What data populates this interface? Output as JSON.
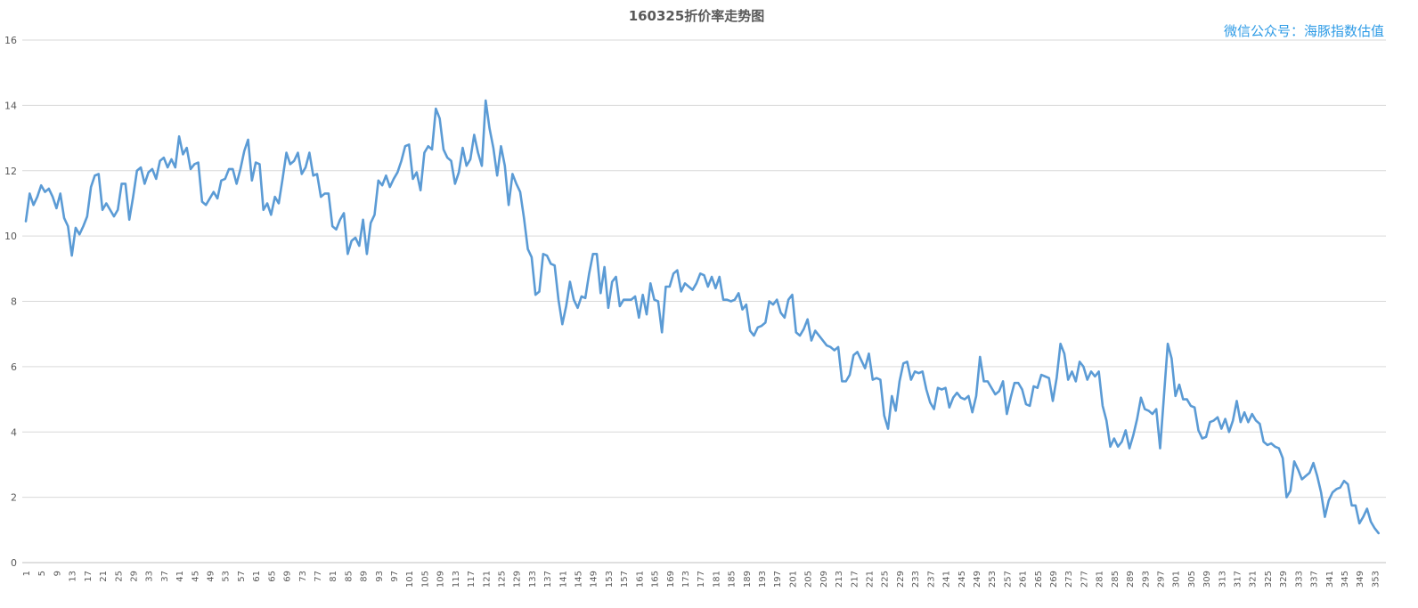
{
  "title": "160325折价率走势图",
  "watermark": "微信公众号：海豚指数估值",
  "colors": {
    "line": "#5B9BD5",
    "grid": "#D9D9D9",
    "axis_text": "#595959",
    "title": "#595959",
    "watermark": "#2E9BE6"
  },
  "chart_data": {
    "type": "line",
    "title": "160325折价率走势图",
    "xlabel": "",
    "ylabel": "",
    "ylim": [
      0,
      16
    ],
    "yticks": [
      0,
      2,
      4,
      6,
      8,
      10,
      12,
      14,
      16
    ],
    "xlim": [
      1,
      355
    ],
    "xticks": [
      1,
      5,
      9,
      13,
      17,
      21,
      25,
      29,
      33,
      37,
      41,
      45,
      49,
      53,
      57,
      61,
      65,
      69,
      73,
      77,
      81,
      85,
      89,
      93,
      97,
      101,
      105,
      109,
      113,
      117,
      121,
      125,
      129,
      133,
      137,
      141,
      145,
      149,
      153,
      157,
      161,
      165,
      169,
      173,
      177,
      181,
      185,
      189,
      193,
      197,
      201,
      205,
      209,
      213,
      217,
      221,
      225,
      229,
      233,
      237,
      241,
      245,
      249,
      253,
      257,
      261,
      265,
      269,
      273,
      277,
      281,
      285,
      289,
      293,
      297,
      301,
      305,
      309,
      313,
      317,
      321,
      325,
      329,
      333,
      337,
      341,
      345,
      349,
      353
    ],
    "grid": true,
    "legend": "none",
    "series": [
      {
        "values": [
          10.45,
          11.3,
          10.95,
          11.2,
          11.55,
          11.35,
          11.45,
          11.2,
          10.85,
          11.3,
          10.55,
          10.3,
          9.4,
          10.25,
          10.05,
          10.3,
          10.6,
          11.5,
          11.85,
          11.9,
          10.8,
          11.0,
          10.8,
          10.6,
          10.8,
          11.6,
          11.6,
          10.5,
          11.2,
          12.0,
          12.1,
          11.6,
          11.95,
          12.05,
          11.75,
          12.3,
          12.4,
          12.1,
          12.35,
          12.1,
          13.05,
          12.5,
          12.7,
          12.05,
          12.2,
          12.25,
          11.05,
          10.95,
          11.15,
          11.35,
          11.15,
          11.7,
          11.75,
          12.05,
          12.05,
          11.6,
          12.05,
          12.6,
          12.95,
          11.7,
          12.25,
          12.2,
          10.8,
          11.0,
          10.65,
          11.2,
          11.0,
          11.75,
          12.55,
          12.2,
          12.3,
          12.55,
          11.9,
          12.1,
          12.55,
          11.85,
          11.9,
          11.2,
          11.3,
          11.3,
          10.3,
          10.2,
          10.5,
          10.7,
          9.45,
          9.85,
          9.95,
          9.7,
          10.5,
          9.45,
          10.4,
          10.65,
          11.7,
          11.55,
          11.85,
          11.5,
          11.75,
          11.95,
          12.3,
          12.75,
          12.8,
          11.75,
          11.95,
          11.4,
          12.55,
          12.75,
          12.65,
          13.9,
          13.6,
          12.65,
          12.4,
          12.3,
          11.6,
          11.95,
          12.7,
          12.15,
          12.35,
          13.1,
          12.55,
          12.15,
          14.15,
          13.3,
          12.7,
          11.85,
          12.75,
          12.15,
          10.95,
          11.9,
          11.6,
          11.35,
          10.55,
          9.6,
          9.35,
          8.2,
          8.3,
          9.45,
          9.4,
          9.15,
          9.1,
          8.05,
          7.3,
          7.85,
          8.6,
          8.05,
          7.8,
          8.15,
          8.1,
          8.85,
          9.45,
          9.45,
          8.25,
          9.05,
          7.8,
          8.6,
          8.75,
          7.85,
          8.05,
          8.05,
          8.05,
          8.15,
          7.5,
          8.2,
          7.6,
          8.55,
          8.05,
          8.0,
          7.05,
          8.45,
          8.45,
          8.85,
          8.95,
          8.3,
          8.55,
          8.45,
          8.35,
          8.55,
          8.85,
          8.8,
          8.45,
          8.75,
          8.4,
          8.75,
          8.05,
          8.05,
          8.0,
          8.05,
          8.25,
          7.75,
          7.9,
          7.1,
          6.95,
          7.2,
          7.25,
          7.35,
          8.0,
          7.9,
          8.05,
          7.65,
          7.5,
          8.05,
          8.2,
          7.05,
          6.95,
          7.15,
          7.45,
          6.8,
          7.1,
          6.95,
          6.8,
          6.65,
          6.6,
          6.5,
          6.6,
          5.55,
          5.55,
          5.75,
          6.35,
          6.45,
          6.2,
          5.95,
          6.4,
          5.6,
          5.65,
          5.6,
          4.5,
          4.1,
          5.1,
          4.65,
          5.55,
          6.1,
          6.15,
          5.6,
          5.85,
          5.8,
          5.85,
          5.3,
          4.9,
          4.7,
          5.35,
          5.3,
          5.35,
          4.75,
          5.05,
          5.2,
          5.05,
          5.0,
          5.1,
          4.6,
          5.1,
          6.3,
          5.55,
          5.55,
          5.35,
          5.15,
          5.25,
          5.55,
          4.55,
          5.05,
          5.5,
          5.5,
          5.3,
          4.85,
          4.8,
          5.4,
          5.35,
          5.75,
          5.7,
          5.65,
          4.95,
          5.65,
          6.7,
          6.4,
          5.6,
          5.85,
          5.55,
          6.15,
          6.0,
          5.6,
          5.85,
          5.7,
          5.85,
          4.8,
          4.35,
          3.55,
          3.8,
          3.55,
          3.7,
          4.05,
          3.5,
          3.9,
          4.4,
          5.05,
          4.7,
          4.65,
          4.55,
          4.7,
          3.5,
          5.1,
          6.7,
          6.25,
          5.1,
          5.45,
          5.0,
          5.0,
          4.8,
          4.75,
          4.05,
          3.8,
          3.85,
          4.3,
          4.35,
          4.45,
          4.1,
          4.4,
          4.0,
          4.35,
          4.95,
          4.3,
          4.6,
          4.3,
          4.55,
          4.35,
          4.25,
          3.7,
          3.6,
          3.65,
          3.55,
          3.5,
          3.2,
          2.0,
          2.2,
          3.1,
          2.85,
          2.55,
          2.65,
          2.75,
          3.05,
          2.65,
          2.15,
          1.4,
          1.9,
          2.15,
          2.25,
          2.3,
          2.5,
          2.4,
          1.75,
          1.75,
          1.2,
          1.4,
          1.65,
          1.25,
          1.05,
          0.9
        ]
      }
    ]
  }
}
